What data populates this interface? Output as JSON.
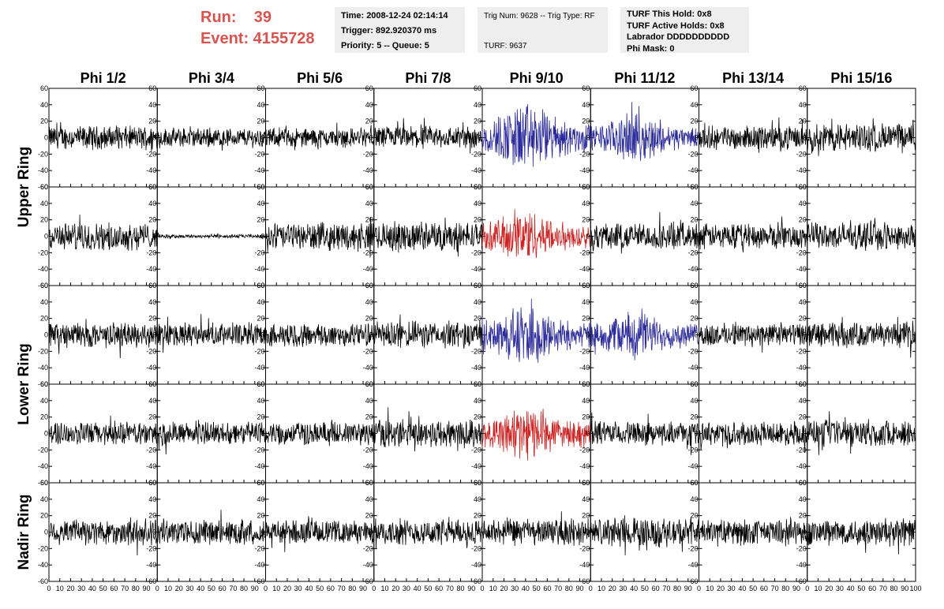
{
  "header": {
    "run_text": "Run:    39",
    "event_text": "Event: 4155728",
    "box1": [
      "Time: 2008-12-24 02:14:14",
      "Trigger: 892.920370 ms",
      "Priority: 5 -- Queue: 5"
    ],
    "box2": [
      "Trig Num: 9628 -- Trig Type: RF",
      "",
      "TURF: 9637"
    ],
    "box3": [
      "TURF This Hold: 0x8",
      "TURF Active Holds: 0x8",
      "Labrador DDDDDDDDDD",
      "Phi Mask: 0"
    ]
  },
  "colors": {
    "run_event": "#d9534f",
    "normal": "#000000",
    "blue": "#2a2a9a",
    "red": "#cc2222",
    "box_bg": "#eeeeee"
  },
  "chart_data": {
    "type": "line",
    "columns": [
      "Phi 1/2",
      "Phi 3/4",
      "Phi 5/6",
      "Phi 7/8",
      "Phi 9/10",
      "Phi 11/12",
      "Phi 13/14",
      "Phi 15/16"
    ],
    "row_groups": [
      "Upper Ring",
      "Lower Ring",
      "Nadir Ring"
    ],
    "rows": 5,
    "ylim": [
      -60,
      60
    ],
    "xlim": [
      0,
      100
    ],
    "y_ticks": [
      -60,
      -40,
      -20,
      0,
      20,
      40,
      60
    ],
    "x_ticks": [
      0,
      10,
      20,
      30,
      40,
      50,
      60,
      70,
      80,
      90,
      100
    ],
    "waveform_amplitude": [
      [
        12,
        10,
        10,
        12,
        26,
        18,
        12,
        15
      ],
      [
        14,
        2,
        14,
        15,
        20,
        14,
        13,
        14
      ],
      [
        13,
        12,
        12,
        14,
        22,
        18,
        12,
        13
      ],
      [
        12,
        12,
        12,
        15,
        20,
        12,
        12,
        14
      ],
      [
        14,
        13,
        12,
        13,
        14,
        15,
        13,
        14
      ]
    ],
    "trace_color": [
      [
        "normal",
        "normal",
        "normal",
        "normal",
        "blue",
        "blue",
        "normal",
        "normal"
      ],
      [
        "normal",
        "normal",
        "normal",
        "normal",
        "red",
        "normal",
        "normal",
        "normal"
      ],
      [
        "normal",
        "normal",
        "normal",
        "normal",
        "blue",
        "blue",
        "normal",
        "normal"
      ],
      [
        "normal",
        "normal",
        "normal",
        "normal",
        "red",
        "normal",
        "normal",
        "normal"
      ],
      [
        "normal",
        "normal",
        "normal",
        "normal",
        "normal",
        "normal",
        "normal",
        "normal"
      ]
    ]
  }
}
